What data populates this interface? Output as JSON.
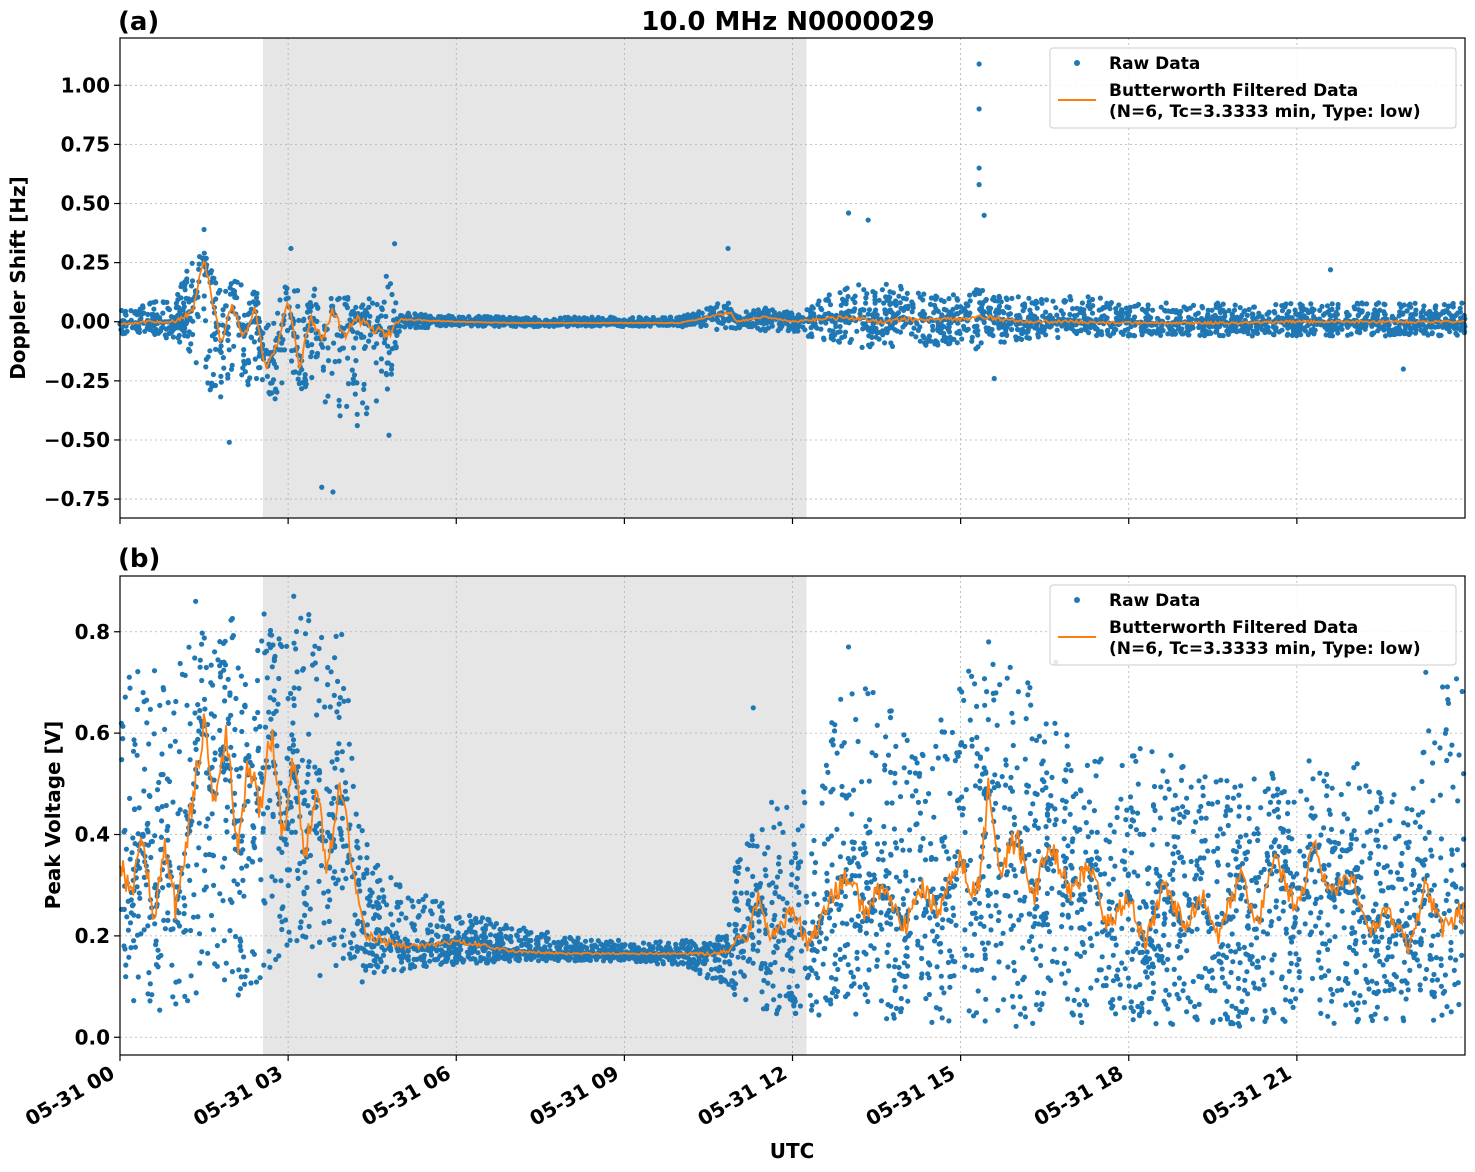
{
  "figure": {
    "title": "10.0 MHz N0000029",
    "xlabel": "UTC",
    "x_tick_labels": [
      "05-31 00",
      "05-31 03",
      "05-31 06",
      "05-31 09",
      "05-31 12",
      "05-31 15",
      "05-31 18",
      "05-31 21"
    ],
    "colors": {
      "raw": "#1f77b4",
      "filtered": "#ff7f0e",
      "shade": "#e6e6e6",
      "grid": "#b0b0b0"
    }
  },
  "legend": {
    "raw_label": "Raw Data",
    "filtered_label_line1": "Butterworth Filtered Data",
    "filtered_label_line2": "(N=6, Tc=3.3333 min, Type: low)"
  },
  "chart_data": [
    {
      "type": "scatter",
      "panel_label": "(a)",
      "title": "10.0 MHz N0000029",
      "ylabel": "Doppler Shift [Hz]",
      "xlabel": "",
      "x_unit": "hours UTC on 05-31",
      "xlim": [
        0,
        24
      ],
      "ylim": [
        -0.83,
        1.2
      ],
      "y_ticks": [
        -0.75,
        -0.5,
        -0.25,
        0.0,
        0.25,
        0.5,
        0.75,
        1.0
      ],
      "y_tick_labels": [
        "−0.75",
        "−0.50",
        "−0.25",
        "0.00",
        "0.25",
        "0.50",
        "0.75",
        "1.00"
      ],
      "grid": true,
      "legend_position": "top-right",
      "shaded_x_range": [
        2.55,
        12.25
      ],
      "series": [
        {
          "name": "Raw Data",
          "style": "points",
          "envelope": {
            "x": [
              0,
              0.5,
              1.0,
              1.3,
              1.5,
              1.7,
              1.9,
              2.1,
              2.3,
              2.55,
              2.8,
              3.0,
              3.2,
              3.5,
              3.8,
              4.0,
              4.3,
              4.6,
              4.8,
              5.0,
              5.5,
              6,
              7,
              8,
              9,
              10,
              10.8,
              11.0,
              11.5,
              12.0,
              12.25,
              12.6,
              13,
              13.5,
              14,
              14.5,
              15,
              15.3,
              15.6,
              16,
              16.5,
              17,
              17.5,
              18,
              19,
              20,
              21,
              22,
              23,
              24
            ],
            "upper": [
              0.06,
              0.08,
              0.1,
              0.28,
              0.32,
              0.18,
              0.15,
              0.2,
              0.14,
              0.12,
              0.1,
              0.2,
              0.12,
              0.14,
              0.1,
              0.12,
              0.08,
              0.12,
              0.22,
              0.04,
              0.03,
              0.025,
              0.02,
              0.02,
              0.02,
              0.02,
              0.1,
              0.04,
              0.06,
              0.04,
              0.06,
              0.12,
              0.15,
              0.18,
              0.15,
              0.12,
              0.12,
              0.14,
              0.12,
              0.12,
              0.1,
              0.12,
              0.1,
              0.08,
              0.08,
              0.08,
              0.08,
              0.08,
              0.08,
              0.08
            ],
            "lower": [
              -0.05,
              -0.06,
              -0.08,
              -0.15,
              -0.25,
              -0.4,
              -0.25,
              -0.2,
              -0.28,
              -0.3,
              -0.35,
              -0.25,
              -0.28,
              -0.32,
              -0.38,
              -0.42,
              -0.45,
              -0.35,
              -0.3,
              -0.03,
              -0.025,
              -0.02,
              -0.02,
              -0.02,
              -0.02,
              -0.02,
              -0.04,
              -0.03,
              -0.04,
              -0.04,
              -0.06,
              -0.08,
              -0.1,
              -0.12,
              -0.1,
              -0.1,
              -0.1,
              -0.12,
              -0.1,
              -0.08,
              -0.08,
              -0.07,
              -0.06,
              -0.06,
              -0.06,
              -0.06,
              -0.06,
              -0.06,
              -0.06,
              -0.06
            ]
          },
          "notable_points": [
            {
              "x": 15.33,
              "y": 1.09
            },
            {
              "x": 15.33,
              "y": 0.9
            },
            {
              "x": 15.33,
              "y": 0.65
            },
            {
              "x": 15.33,
              "y": 0.58
            },
            {
              "x": 15.42,
              "y": 0.45
            },
            {
              "x": 13.0,
              "y": 0.46
            },
            {
              "x": 13.35,
              "y": 0.43
            },
            {
              "x": 1.5,
              "y": 0.39
            },
            {
              "x": 4.9,
              "y": 0.33
            },
            {
              "x": 10.85,
              "y": 0.31
            },
            {
              "x": 3.05,
              "y": 0.31
            },
            {
              "x": 3.8,
              "y": -0.72
            },
            {
              "x": 3.6,
              "y": -0.7
            },
            {
              "x": 1.95,
              "y": -0.51
            },
            {
              "x": 4.8,
              "y": -0.48
            },
            {
              "x": 15.6,
              "y": -0.24
            },
            {
              "x": 21.6,
              "y": 0.22
            },
            {
              "x": 22.9,
              "y": -0.2
            }
          ]
        },
        {
          "name": "Butterworth Filtered Data",
          "style": "line",
          "x": [
            0,
            0.5,
            1.0,
            1.3,
            1.5,
            1.6,
            1.8,
            2.0,
            2.2,
            2.4,
            2.6,
            2.8,
            3.0,
            3.2,
            3.4,
            3.6,
            3.8,
            4.0,
            4.2,
            4.5,
            4.8,
            5.0,
            6,
            7,
            8,
            9,
            10,
            10.9,
            11.0,
            11.5,
            12,
            12.5,
            13,
            13.5,
            14,
            15,
            15.5,
            16,
            17,
            18,
            19,
            20,
            21,
            22,
            23,
            24
          ],
          "y": [
            -0.01,
            0.0,
            0.0,
            0.05,
            0.26,
            0.15,
            -0.1,
            0.08,
            -0.07,
            0.06,
            -0.2,
            -0.1,
            0.1,
            -0.2,
            0.02,
            -0.08,
            0.05,
            -0.06,
            0.02,
            -0.03,
            -0.05,
            0.01,
            0.0,
            -0.005,
            -0.005,
            -0.005,
            -0.005,
            0.04,
            0.0,
            0.02,
            0.0,
            0.01,
            0.02,
            0.0,
            0.01,
            0.01,
            0.02,
            0.0,
            0.0,
            -0.005,
            -0.005,
            -0.005,
            0.0,
            0.0,
            0.0,
            0.0
          ]
        }
      ]
    },
    {
      "type": "scatter",
      "panel_label": "(b)",
      "title": "",
      "ylabel": "Peak Voltage [V]",
      "xlabel": "UTC",
      "x_unit": "hours UTC on 05-31",
      "xlim": [
        0,
        24
      ],
      "ylim": [
        -0.035,
        0.91
      ],
      "y_ticks": [
        0.0,
        0.2,
        0.4,
        0.6,
        0.8
      ],
      "y_tick_labels": [
        "0.0",
        "0.2",
        "0.4",
        "0.6",
        "0.8"
      ],
      "grid": true,
      "legend_position": "top-right",
      "shaded_x_range": [
        2.55,
        12.25
      ],
      "series": [
        {
          "name": "Raw Data",
          "style": "points",
          "envelope": {
            "x": [
              0,
              0.5,
              1.0,
              1.3,
              1.6,
              2.0,
              2.5,
              3.0,
              3.5,
              4.0,
              4.2,
              4.5,
              5.0,
              5.5,
              6.0,
              7.0,
              8.0,
              9.0,
              10.0,
              10.8,
              11.0,
              11.5,
              12.0,
              12.5,
              13.0,
              13.5,
              14.0,
              14.5,
              15.0,
              15.5,
              16.0,
              16.5,
              17.0,
              17.5,
              18.0,
              19.0,
              20.0,
              21.0,
              22.0,
              22.5,
              23.0,
              23.5,
              24.0
            ],
            "upper": [
              0.75,
              0.72,
              0.75,
              0.82,
              0.84,
              0.83,
              0.84,
              0.86,
              0.84,
              0.8,
              0.45,
              0.35,
              0.3,
              0.28,
              0.25,
              0.22,
              0.2,
              0.19,
              0.19,
              0.2,
              0.35,
              0.48,
              0.45,
              0.55,
              0.75,
              0.68,
              0.62,
              0.6,
              0.7,
              0.78,
              0.74,
              0.65,
              0.6,
              0.55,
              0.58,
              0.55,
              0.5,
              0.55,
              0.55,
              0.5,
              0.48,
              0.7,
              0.75
            ],
            "lower": [
              0.08,
              0.05,
              0.03,
              0.06,
              0.1,
              0.06,
              0.1,
              0.15,
              0.12,
              0.1,
              0.1,
              0.12,
              0.13,
              0.14,
              0.14,
              0.15,
              0.15,
              0.15,
              0.14,
              0.1,
              0.08,
              0.05,
              0.04,
              0.03,
              0.03,
              0.03,
              0.03,
              0.02,
              0.02,
              0.02,
              0.02,
              0.02,
              0.02,
              0.03,
              0.02,
              0.02,
              0.02,
              0.02,
              0.03,
              0.03,
              0.03,
              0.03,
              0.03
            ]
          },
          "notable_points": [
            {
              "x": 16.7,
              "y": 0.74
            },
            {
              "x": 13.0,
              "y": 0.77
            },
            {
              "x": 15.5,
              "y": 0.78
            },
            {
              "x": 11.3,
              "y": 0.65
            },
            {
              "x": 23.3,
              "y": 0.72
            },
            {
              "x": 3.1,
              "y": 0.87
            },
            {
              "x": 1.35,
              "y": 0.86
            }
          ]
        },
        {
          "name": "Butterworth Filtered Data",
          "style": "line",
          "x": [
            0,
            0.2,
            0.4,
            0.6,
            0.8,
            1.0,
            1.2,
            1.4,
            1.5,
            1.7,
            1.9,
            2.1,
            2.3,
            2.5,
            2.7,
            2.9,
            3.1,
            3.3,
            3.5,
            3.7,
            3.9,
            4.0,
            4.2,
            4.4,
            5.0,
            5.5,
            6.0,
            6.5,
            7.0,
            8.0,
            9.0,
            10.0,
            10.5,
            10.9,
            11.0,
            11.2,
            11.4,
            11.6,
            12.0,
            12.3,
            12.6,
            13.0,
            13.3,
            13.6,
            14.0,
            14.3,
            14.6,
            15.0,
            15.3,
            15.5,
            15.7,
            16.0,
            16.3,
            16.6,
            17.0,
            17.3,
            17.6,
            18.0,
            18.3,
            18.6,
            19.0,
            19.3,
            19.6,
            20.0,
            20.3,
            20.6,
            21.0,
            21.3,
            21.6,
            22.0,
            22.3,
            22.6,
            23.0,
            23.3,
            23.6,
            24.0
          ],
          "y": [
            0.35,
            0.28,
            0.4,
            0.22,
            0.38,
            0.25,
            0.4,
            0.55,
            0.62,
            0.45,
            0.6,
            0.35,
            0.55,
            0.45,
            0.6,
            0.4,
            0.55,
            0.35,
            0.5,
            0.32,
            0.5,
            0.45,
            0.3,
            0.2,
            0.18,
            0.18,
            0.19,
            0.18,
            0.17,
            0.165,
            0.165,
            0.165,
            0.165,
            0.17,
            0.19,
            0.2,
            0.28,
            0.2,
            0.25,
            0.18,
            0.26,
            0.32,
            0.25,
            0.3,
            0.22,
            0.3,
            0.25,
            0.35,
            0.28,
            0.5,
            0.32,
            0.4,
            0.28,
            0.38,
            0.28,
            0.35,
            0.22,
            0.28,
            0.18,
            0.3,
            0.22,
            0.28,
            0.2,
            0.32,
            0.22,
            0.35,
            0.25,
            0.38,
            0.28,
            0.32,
            0.2,
            0.25,
            0.18,
            0.3,
            0.22,
            0.25
          ]
        }
      ]
    }
  ]
}
